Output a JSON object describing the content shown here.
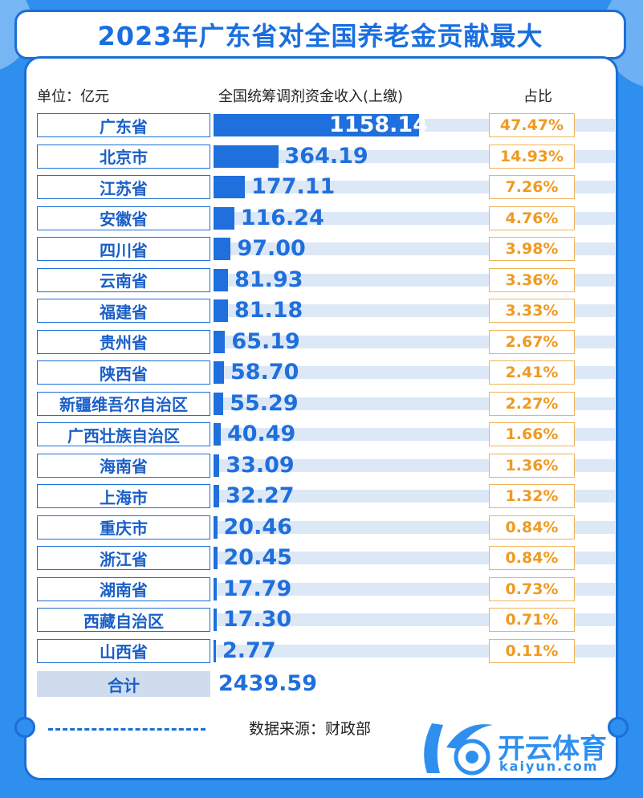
{
  "title": "2023年广东省对全国养老金贡献最大",
  "header": {
    "unit": "单位：亿元",
    "col_amount": "全国统筹调剂资金收入(上缴)",
    "col_share": "占比"
  },
  "chart_data": {
    "type": "bar",
    "orientation": "horizontal",
    "categories": [
      "广东省",
      "北京市",
      "江苏省",
      "安徽省",
      "四川省",
      "云南省",
      "福建省",
      "贵州省",
      "陕西省",
      "新疆维吾尔自治区",
      "广西壮族自治区",
      "海南省",
      "上海市",
      "重庆市",
      "浙江省",
      "湖南省",
      "西藏自治区",
      "山西省"
    ],
    "value_labels": [
      "1158.14",
      "364.19",
      "177.11",
      "116.24",
      "97.00",
      "81.93",
      "81.18",
      "65.19",
      "58.70",
      "55.29",
      "40.49",
      "33.09",
      "32.27",
      "20.46",
      "20.45",
      "17.79",
      "17.30",
      "2.77"
    ],
    "values": [
      1158.14,
      364.19,
      177.11,
      116.24,
      97.0,
      81.93,
      81.18,
      65.19,
      58.7,
      55.29,
      40.49,
      33.09,
      32.27,
      20.46,
      20.45,
      17.79,
      17.3,
      2.77
    ],
    "shares": [
      "47.47%",
      "14.93%",
      "7.26%",
      "4.76%",
      "3.98%",
      "3.36%",
      "3.33%",
      "2.67%",
      "2.41%",
      "2.27%",
      "1.66%",
      "1.36%",
      "1.32%",
      "0.84%",
      "0.84%",
      "0.73%",
      "0.71%",
      "0.11%"
    ],
    "total_label": "合计",
    "total_value": "2439.59",
    "colors": {
      "bar": "#1f6fdc",
      "share": "#ef9a22",
      "accent": "#2f8fee"
    }
  },
  "footer": {
    "source": "数据来源：财政部",
    "logo_text": "开云体育",
    "logo_sub": "kaiyun.com"
  }
}
